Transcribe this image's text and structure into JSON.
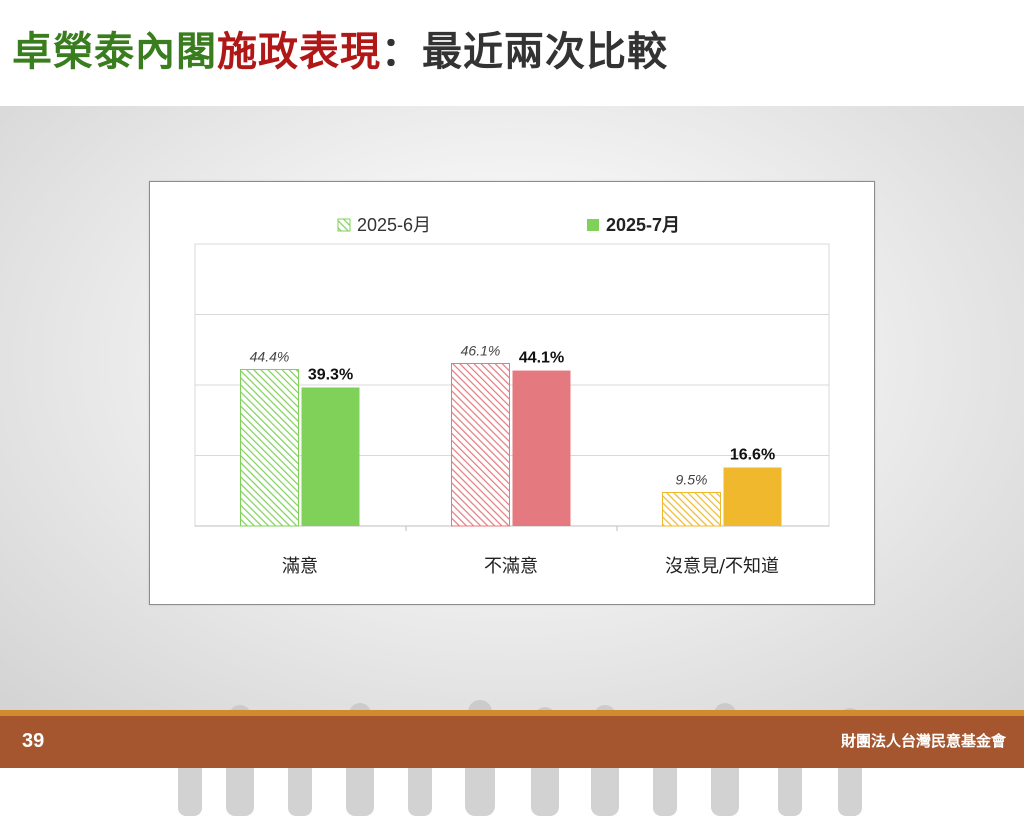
{
  "slide": {
    "title_part1": "卓榮泰內閣",
    "title_part2": "施政表現",
    "title_part3": "：最近兩次比較",
    "page_number": "39",
    "organization": "財團法人台灣民意基金會"
  },
  "colors": {
    "satisfied": "#7fd15a",
    "dissatisfied": "#e47a7f",
    "neutral": "#f0b92d",
    "footer": "#a5562f",
    "footer_stripe": "#d38a2e"
  },
  "chart_data": {
    "type": "bar",
    "categories": [
      "滿意",
      "不滿意",
      "沒意見/不知道"
    ],
    "series": [
      {
        "name": "2025-6月",
        "values": [
          44.4,
          46.1,
          9.5
        ],
        "labels": [
          "44.4%",
          "46.1%",
          "9.5%"
        ],
        "style": "hatched"
      },
      {
        "name": "2025-7月",
        "values": [
          39.3,
          44.1,
          16.6
        ],
        "labels": [
          "39.3%",
          "44.1%",
          "16.6%"
        ],
        "style": "solid"
      }
    ],
    "ylim": [
      0,
      80
    ],
    "grid": true,
    "legend_position": "top-center"
  }
}
